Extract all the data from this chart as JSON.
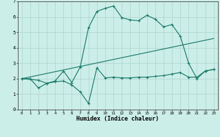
{
  "xlabel": "Humidex (Indice chaleur)",
  "xlim": [
    -0.5,
    23.5
  ],
  "ylim": [
    0,
    7
  ],
  "xticks": [
    0,
    1,
    2,
    3,
    4,
    5,
    6,
    7,
    8,
    9,
    10,
    11,
    12,
    13,
    14,
    15,
    16,
    17,
    18,
    19,
    20,
    21,
    22,
    23
  ],
  "yticks": [
    0,
    1,
    2,
    3,
    4,
    5,
    6,
    7
  ],
  "line_color": "#1a7a6a",
  "bg_color": "#cceee8",
  "grid_color": "#b0d8d0",
  "line1_x": [
    0,
    1,
    2,
    3,
    4,
    5,
    6,
    7,
    8,
    9,
    10,
    11,
    12,
    13,
    14,
    15,
    16,
    17,
    18,
    19,
    20,
    21,
    22,
    23
  ],
  "line1_y": [
    2.0,
    2.0,
    1.4,
    1.7,
    1.8,
    1.85,
    1.6,
    1.15,
    0.4,
    2.7,
    2.05,
    2.1,
    2.05,
    2.05,
    2.1,
    2.1,
    2.15,
    2.2,
    2.3,
    2.4,
    2.1,
    2.1,
    2.5,
    2.6
  ],
  "line2_x": [
    0,
    2,
    3,
    4,
    5,
    6,
    7,
    8,
    9,
    10,
    11,
    12,
    13,
    14,
    15,
    16,
    17,
    18,
    19,
    20,
    21,
    22,
    23
  ],
  "line2_y": [
    2.0,
    1.9,
    1.7,
    1.85,
    2.5,
    1.75,
    2.75,
    5.3,
    6.35,
    6.55,
    6.7,
    5.95,
    5.8,
    5.75,
    6.1,
    5.85,
    5.35,
    5.5,
    4.75,
    3.0,
    2.0,
    2.5,
    2.6
  ],
  "line3_x": [
    0,
    23
  ],
  "line3_y": [
    2.0,
    4.6
  ]
}
